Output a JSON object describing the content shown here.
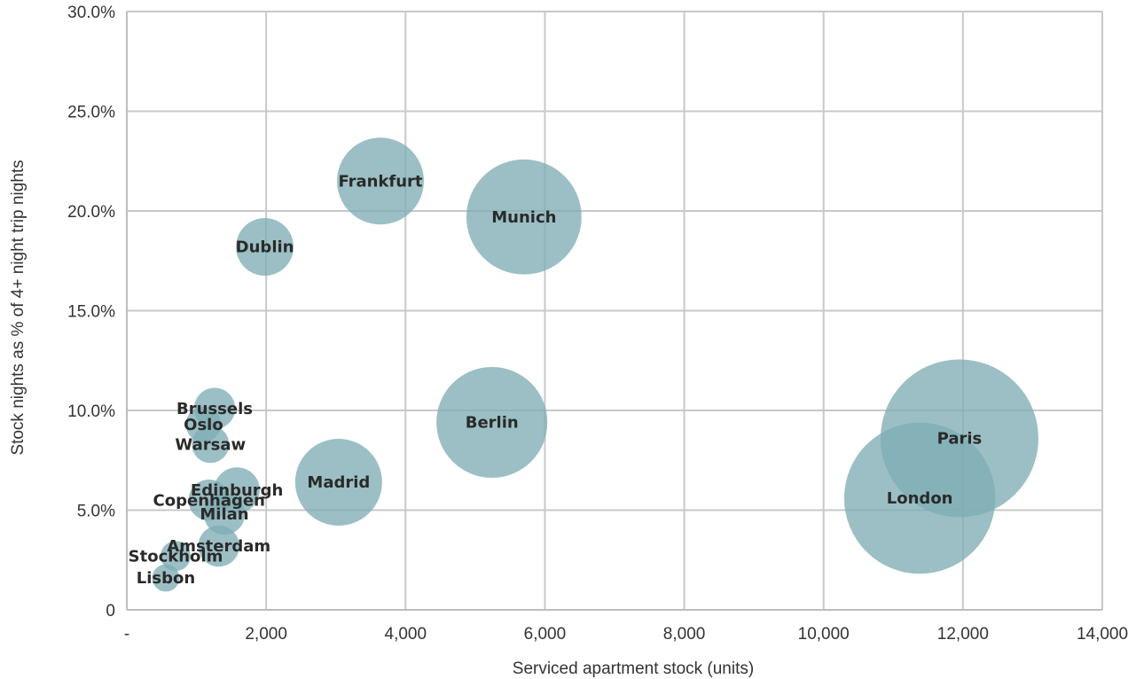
{
  "chart_data": {
    "type": "scatter",
    "variant": "bubble",
    "title": "",
    "xlabel": "Serviced apartment stock (units)",
    "ylabel": "Stock nights as % of 4+ night trip nights",
    "xlim": [
      0,
      14000
    ],
    "ylim": [
      0,
      30
    ],
    "x_ticks": [
      0,
      2000,
      4000,
      6000,
      8000,
      10000,
      12000,
      14000
    ],
    "x_tick_labels": [
      "-",
      "2,000",
      "4,000",
      "6,000",
      "8,000",
      "10,000",
      "12,000",
      "14,000"
    ],
    "y_ticks": [
      0,
      5,
      10,
      15,
      20,
      25,
      30
    ],
    "y_tick_labels": [
      "0",
      "5.0%",
      "10.0%",
      "15.0%",
      "20.0%",
      "25.0%",
      "30.0%"
    ],
    "grid": true,
    "bubble_color": "#7fadb5",
    "points": [
      {
        "label": "Paris",
        "x": 11950,
        "y": 8.6,
        "size": 1.0
      },
      {
        "label": "London",
        "x": 11380,
        "y": 5.6,
        "size": 0.917
      },
      {
        "label": "Munich",
        "x": 5700,
        "y": 19.7,
        "size": 0.532
      },
      {
        "label": "Berlin",
        "x": 5240,
        "y": 9.4,
        "size": 0.494
      },
      {
        "label": "Frankfurt",
        "x": 3640,
        "y": 21.5,
        "size": 0.303
      },
      {
        "label": "Madrid",
        "x": 3040,
        "y": 6.4,
        "size": 0.303
      },
      {
        "label": "Dublin",
        "x": 1980,
        "y": 18.2,
        "size": 0.133
      },
      {
        "label": "Brussels",
        "x": 1260,
        "y": 10.1,
        "size": 0.068
      },
      {
        "label": "Oslo",
        "x": 1100,
        "y": 9.3,
        "size": 0.05
      },
      {
        "label": "Warsaw",
        "x": 1200,
        "y": 8.3,
        "size": 0.056
      },
      {
        "label": "Edinburgh",
        "x": 1580,
        "y": 6.0,
        "size": 0.084
      },
      {
        "label": "Copenhagen",
        "x": 1180,
        "y": 5.5,
        "size": 0.068
      },
      {
        "label": "Milan",
        "x": 1400,
        "y": 4.8,
        "size": 0.068
      },
      {
        "label": "Amsterdam",
        "x": 1320,
        "y": 3.2,
        "size": 0.068
      },
      {
        "label": "Stockholm",
        "x": 700,
        "y": 2.7,
        "size": 0.036
      },
      {
        "label": "Lisbon",
        "x": 560,
        "y": 1.6,
        "size": 0.03
      }
    ]
  }
}
